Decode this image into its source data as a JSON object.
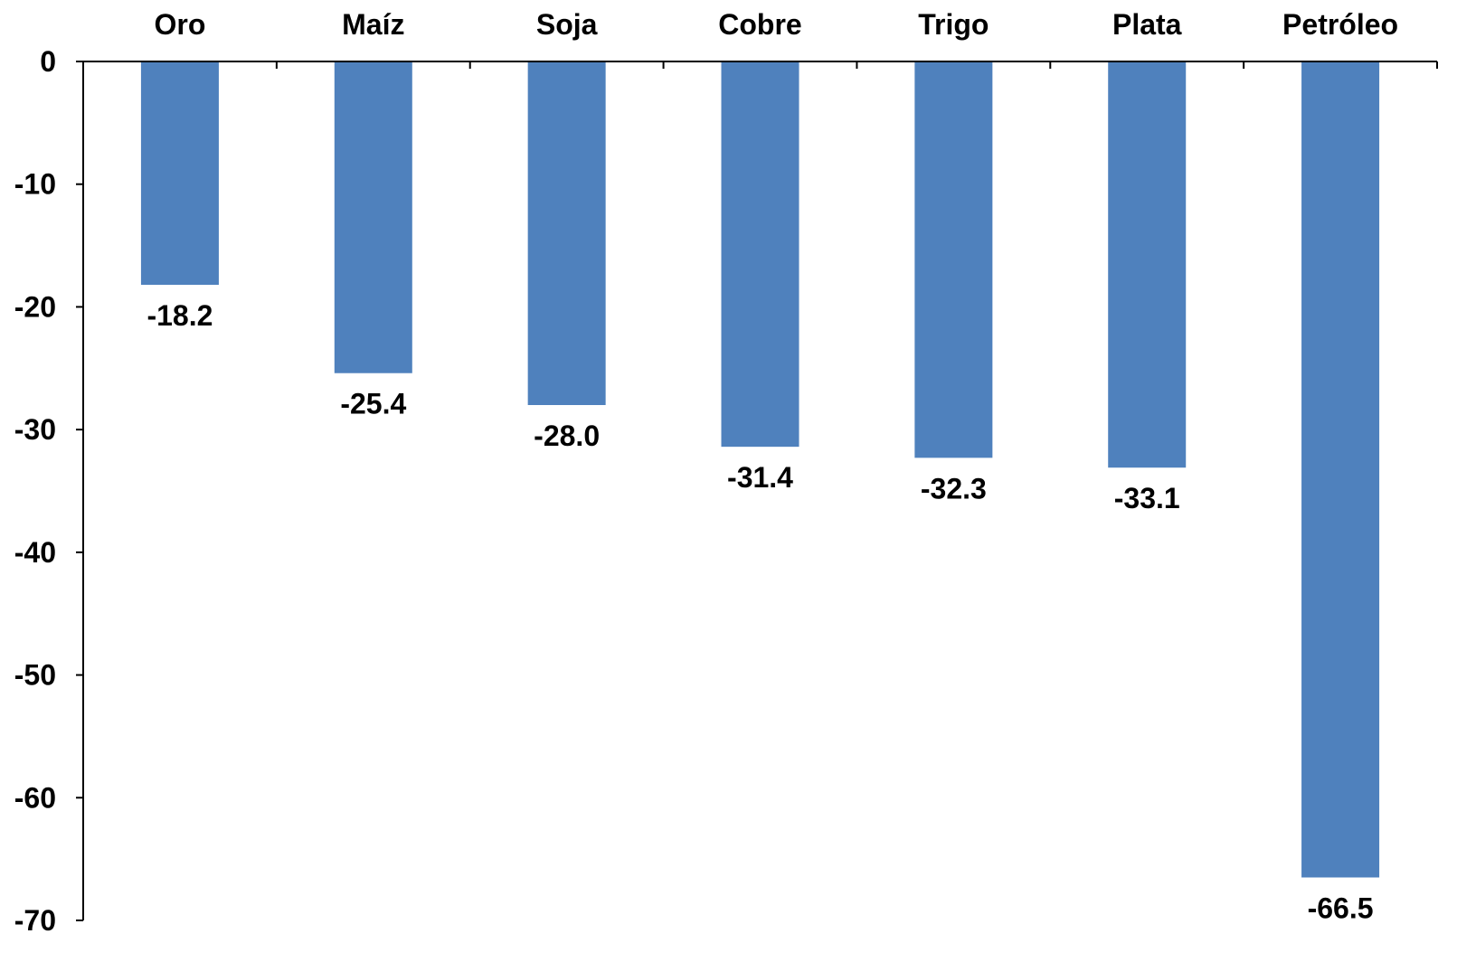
{
  "chart_data": {
    "type": "bar",
    "categories": [
      "Oro",
      "Maíz",
      "Soja",
      "Cobre",
      "Trigo",
      "Plata",
      "Petróleo"
    ],
    "values": [
      -18.2,
      -25.4,
      -28.0,
      -31.4,
      -32.3,
      -33.1,
      -66.5
    ],
    "data_labels": [
      "-18.2",
      "-25.4",
      "-28.0",
      "-31.4",
      "-32.3",
      "-33.1",
      "-66.5"
    ],
    "y_ticks": [
      0,
      -10,
      -20,
      -30,
      -40,
      -50,
      -60,
      -70
    ],
    "ylim": [
      -70,
      0
    ],
    "category_axis_position": "top",
    "grid": false,
    "legend": "none",
    "colors": {
      "bar": "#4F81BD",
      "axis": "#000000",
      "text": "#000000"
    }
  }
}
